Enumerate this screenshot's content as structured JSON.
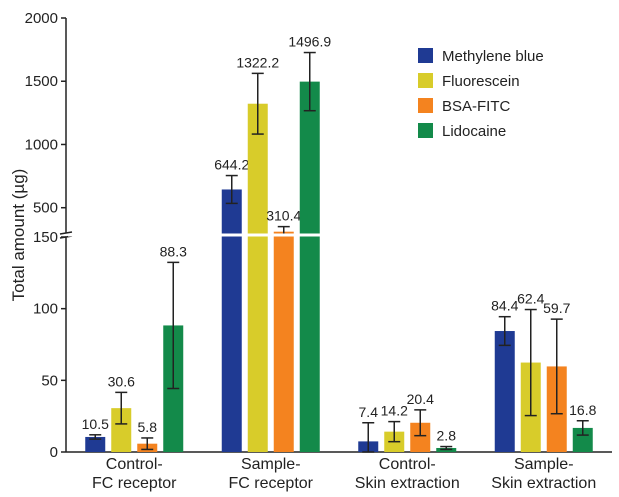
{
  "chart_data": {
    "type": "bar",
    "title": "",
    "xlabel": "",
    "ylabel": "Total amount (µg)",
    "categories_lines": [
      [
        "Control-",
        "FC receptor"
      ],
      [
        "Sample-",
        "FC receptor"
      ],
      [
        "Control-",
        "Skin extraction"
      ],
      [
        "Sample-",
        "Skin extraction"
      ]
    ],
    "categories": [
      "Control-FC receptor",
      "Sample-FC receptor",
      "Control-Skin extraction",
      "Sample-Skin extraction"
    ],
    "series": [
      {
        "name": "Methylene blue",
        "color": "#1f3a93",
        "values": [
          10.5,
          644.2,
          7.4,
          84.4
        ],
        "labels": [
          "10.5",
          "644.2",
          "7.4",
          "84.4"
        ],
        "errors": [
          1.5,
          110,
          13,
          10
        ]
      },
      {
        "name": "Fluorescein",
        "color": "#d8cc2a",
        "values": [
          30.6,
          1322.2,
          14.2,
          62.4
        ],
        "labels": [
          "30.6",
          "1322.2",
          "14.2",
          "62.4"
        ],
        "errors": [
          11,
          240,
          7,
          37
        ]
      },
      {
        "name": "BSA-FITC",
        "color": "#f4831f",
        "values": [
          5.8,
          310.4,
          20.4,
          59.7
        ],
        "labels": [
          "5.8",
          "310.4",
          "20.4",
          "59.7"
        ],
        "errors": [
          4,
          40,
          9,
          33
        ]
      },
      {
        "name": "Lidocaine",
        "color": "#138a4a",
        "values": [
          88.3,
          1496.9,
          2.8,
          16.8
        ],
        "labels": [
          "88.3",
          "1496.9",
          "2.8",
          "16.8"
        ],
        "errors": [
          44,
          230,
          1,
          5
        ]
      }
    ],
    "broken_axis": {
      "lower_range": [
        0,
        150
      ],
      "upper_range": [
        300,
        2000
      ]
    },
    "y_ticks_lower": [
      "0",
      "50",
      "100",
      "150"
    ],
    "y_ticks_upper": [
      "500",
      "1000",
      "1500",
      "2000"
    ],
    "y_ticks_lower_values": [
      0,
      50,
      100,
      150
    ],
    "y_ticks_upper_values": [
      500,
      1000,
      1500,
      2000
    ],
    "legend_position": "top-right"
  }
}
